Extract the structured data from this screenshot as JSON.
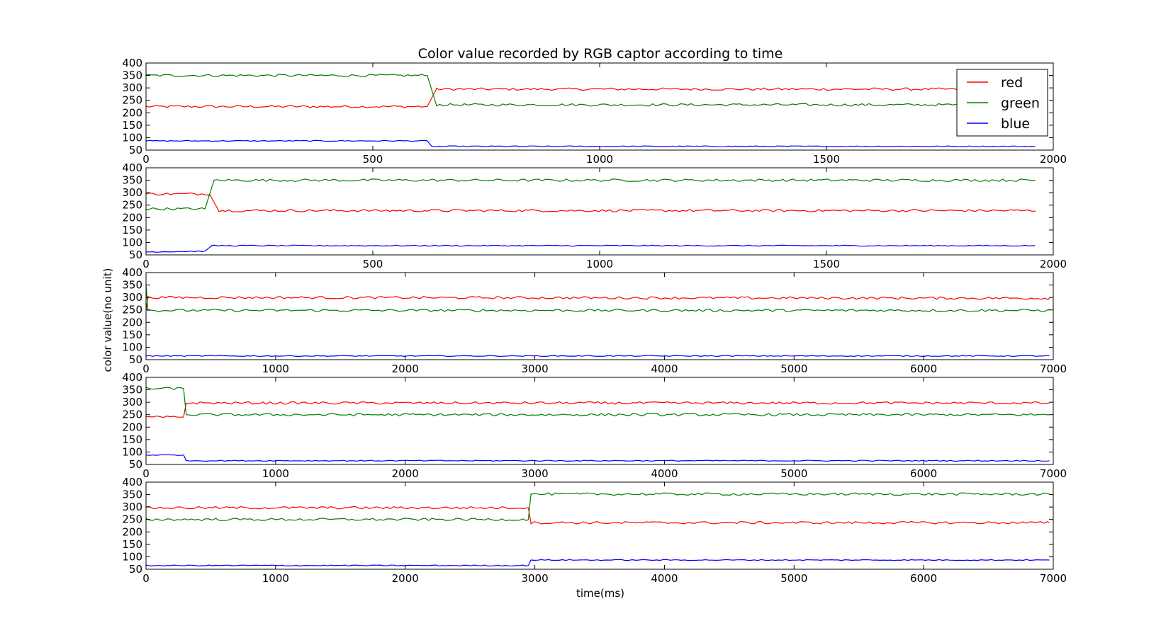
{
  "chart_data": {
    "type": "line",
    "title": "Color value recorded by RGB captor according to time",
    "xlabel": "time(ms)",
    "ylabel": "color value(no unit)",
    "legend": {
      "placement": "top-right",
      "entries": [
        "red",
        "green",
        "blue"
      ]
    },
    "colors": {
      "red": "#ff0000",
      "green": "#008000",
      "blue": "#0000ff"
    },
    "grid": false,
    "subplots": [
      {
        "xlim": [
          0,
          2000
        ],
        "ylim": [
          50,
          400
        ],
        "xticks": [
          "0",
          "500",
          "1000",
          "1500",
          "2000"
        ],
        "yticks": [
          "50",
          "100",
          "150",
          "200",
          "250",
          "300",
          "350",
          "400"
        ],
        "x_end": 1960,
        "segments": {
          "red": [
            [
              0,
              225
            ],
            [
              620,
              225
            ],
            [
              640,
              295
            ],
            [
              1960,
              295
            ]
          ],
          "green": [
            [
              0,
              350
            ],
            [
              620,
              350
            ],
            [
              640,
              232
            ],
            [
              1960,
              232
            ]
          ],
          "blue": [
            [
              0,
              87
            ],
            [
              620,
              87
            ],
            [
              630,
              65
            ],
            [
              1960,
              65
            ]
          ]
        }
      },
      {
        "xlim": [
          0,
          2000
        ],
        "ylim": [
          50,
          400
        ],
        "xticks": [
          "0",
          "500",
          "1000",
          "1500",
          "2000"
        ],
        "yticks": [
          "50",
          "100",
          "150",
          "200",
          "250",
          "300",
          "350",
          "400"
        ],
        "x_end": 1960,
        "segments": {
          "red": [
            [
              0,
              295
            ],
            [
              140,
              295
            ],
            [
              160,
              228
            ],
            [
              1960,
              228
            ]
          ],
          "green": [
            [
              0,
              235
            ],
            [
              130,
              235
            ],
            [
              150,
              350
            ],
            [
              1960,
              350
            ]
          ],
          "blue": [
            [
              0,
              62
            ],
            [
              130,
              65
            ],
            [
              145,
              87
            ],
            [
              1960,
              87
            ]
          ]
        }
      },
      {
        "xlim": [
          0,
          7000
        ],
        "ylim": [
          50,
          400
        ],
        "xticks": [
          "0",
          "1000",
          "2000",
          "3000",
          "4000",
          "5000",
          "6000",
          "7000"
        ],
        "yticks": [
          "50",
          "100",
          "150",
          "200",
          "250",
          "300",
          "350",
          "400"
        ],
        "x_end": 6970,
        "segments": {
          "red": [
            [
              0,
              250
            ],
            [
              15,
              300
            ],
            [
              6970,
              297
            ]
          ],
          "green": [
            [
              0,
              350
            ],
            [
              15,
              248
            ],
            [
              6970,
              248
            ]
          ],
          "blue": [
            [
              0,
              65
            ],
            [
              6970,
              65
            ]
          ]
        }
      },
      {
        "xlim": [
          0,
          7000
        ],
        "ylim": [
          50,
          400
        ],
        "xticks": [
          "0",
          "1000",
          "2000",
          "3000",
          "4000",
          "5000",
          "6000",
          "7000"
        ],
        "yticks": [
          "50",
          "100",
          "150",
          "200",
          "250",
          "300",
          "350",
          "400"
        ],
        "x_end": 6970,
        "segments": {
          "red": [
            [
              0,
              240
            ],
            [
              290,
              240
            ],
            [
              310,
              297
            ],
            [
              6970,
              297
            ]
          ],
          "green": [
            [
              0,
              355
            ],
            [
              290,
              355
            ],
            [
              310,
              250
            ],
            [
              6970,
              250
            ]
          ],
          "blue": [
            [
              0,
              88
            ],
            [
              290,
              88
            ],
            [
              310,
              65
            ],
            [
              6970,
              65
            ]
          ]
        }
      },
      {
        "xlim": [
          0,
          7000
        ],
        "ylim": [
          50,
          400
        ],
        "xticks": [
          "0",
          "1000",
          "2000",
          "3000",
          "4000",
          "5000",
          "6000",
          "7000"
        ],
        "yticks": [
          "50",
          "100",
          "150",
          "200",
          "250",
          "300",
          "350",
          "400"
        ],
        "x_end": 6970,
        "segments": {
          "red": [
            [
              0,
              297
            ],
            [
              2950,
              297
            ],
            [
              2970,
              237
            ],
            [
              6970,
              237
            ]
          ],
          "green": [
            [
              0,
              250
            ],
            [
              2950,
              250
            ],
            [
              2970,
              352
            ],
            [
              6970,
              352
            ]
          ],
          "blue": [
            [
              0,
              65
            ],
            [
              2950,
              65
            ],
            [
              2970,
              87
            ],
            [
              6970,
              87
            ]
          ]
        }
      }
    ]
  }
}
